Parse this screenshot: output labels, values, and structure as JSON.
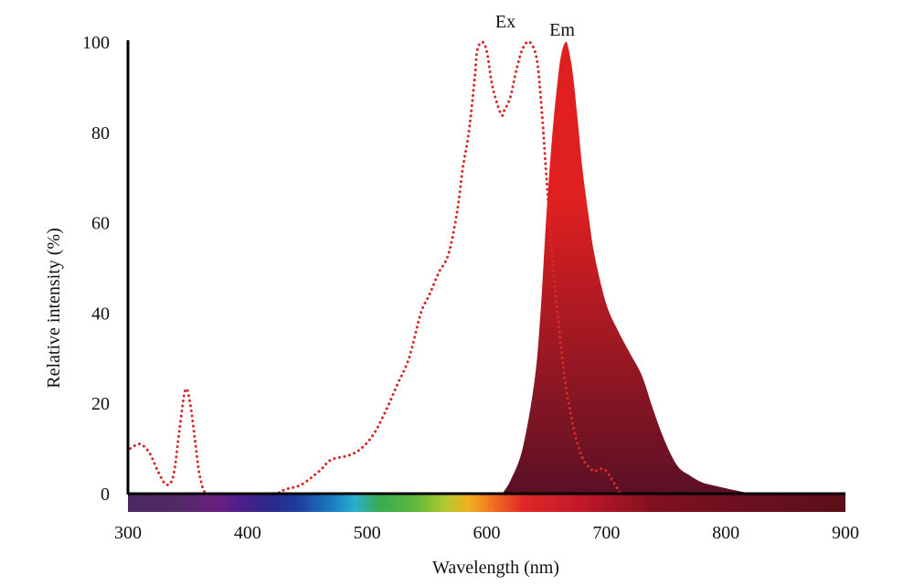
{
  "chart_data": {
    "type": "area",
    "xlabel": "Wavelength (nm)",
    "ylabel": "Relative intensity (%)",
    "xlim": [
      300,
      900
    ],
    "ylim": [
      0,
      100
    ],
    "xticks": [
      300,
      400,
      500,
      600,
      700,
      800,
      900
    ],
    "yticks": [
      0,
      20,
      40,
      60,
      80,
      100
    ],
    "grid": false,
    "legend": "none",
    "series": [
      {
        "name": "Ex",
        "style": "dotted-line",
        "color": "#d42a2a",
        "x": [
          302,
          310,
          318,
          325,
          332,
          338,
          343,
          348,
          352,
          356,
          360,
          365,
          372,
          420,
          432,
          445,
          460,
          470,
          485,
          495,
          505,
          515,
          525,
          535,
          545,
          552,
          560,
          568,
          575,
          580,
          585,
          590,
          592,
          596,
          600,
          605,
          612,
          615,
          620,
          625,
          630,
          636,
          642,
          646,
          650,
          655,
          660,
          665,
          670,
          675,
          680,
          685,
          690,
          695,
          700,
          705,
          712
        ],
        "y": [
          10,
          11,
          9,
          5,
          2,
          4,
          14,
          23,
          20,
          12,
          4,
          0,
          0,
          0,
          1,
          2,
          5,
          7.5,
          8.5,
          10,
          13,
          18,
          24,
          30,
          40,
          44,
          49,
          53,
          62,
          72,
          80,
          92,
          98,
          100,
          98,
          90,
          84,
          85,
          88,
          94,
          98.5,
          100,
          96,
          85,
          70,
          52,
          38,
          26,
          18,
          12,
          8,
          6,
          5,
          5.5,
          5,
          3,
          0
        ]
      },
      {
        "name": "Em",
        "style": "filled-area",
        "color_top": "#e02020",
        "color_bottom": "#5a1025",
        "x": [
          613,
          620,
          630,
          640,
          645,
          650,
          655,
          660,
          663,
          666,
          668,
          672,
          676,
          680,
          685,
          690,
          700,
          710,
          720,
          730,
          740,
          750,
          760,
          770,
          780,
          790,
          800,
          810,
          822
        ],
        "y": [
          0,
          3,
          10,
          25,
          40,
          62,
          80,
          93,
          98,
          100,
          99,
          93,
          83,
          72,
          62,
          53,
          42,
          36,
          31,
          26,
          18,
          11,
          6,
          4,
          2.5,
          1.8,
          1.2,
          0.6,
          0
        ]
      }
    ],
    "spectrum_bar": [
      {
        "nm": 300,
        "color": "#4a2a5e"
      },
      {
        "nm": 340,
        "color": "#512a64"
      },
      {
        "nm": 375,
        "color": "#6b1f80"
      },
      {
        "nm": 395,
        "color": "#4a1f8a"
      },
      {
        "nm": 420,
        "color": "#2a2a8a"
      },
      {
        "nm": 440,
        "color": "#1e3a9a"
      },
      {
        "nm": 470,
        "color": "#1a7ac0"
      },
      {
        "nm": 490,
        "color": "#2ab0d0"
      },
      {
        "nm": 510,
        "color": "#3aaa50"
      },
      {
        "nm": 540,
        "color": "#5cb83a"
      },
      {
        "nm": 565,
        "color": "#b0c830"
      },
      {
        "nm": 585,
        "color": "#f0b020"
      },
      {
        "nm": 605,
        "color": "#f07020"
      },
      {
        "nm": 630,
        "color": "#e02828"
      },
      {
        "nm": 680,
        "color": "#c01828"
      },
      {
        "nm": 740,
        "color": "#801020"
      },
      {
        "nm": 820,
        "color": "#6a1020"
      },
      {
        "nm": 900,
        "color": "#5c1018"
      }
    ]
  }
}
